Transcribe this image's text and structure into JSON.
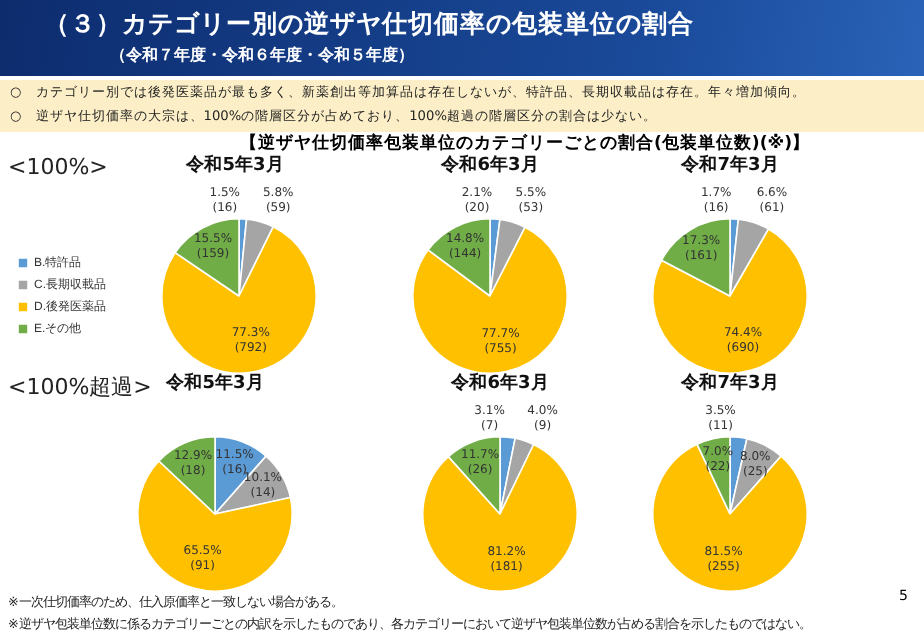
{
  "chart_data": [
    {
      "type": "other",
      "title": "（３）カテゴリー別の逆ザヤ仕切価率の包装単位の割合",
      "subtitle": "（令和７年度・令和６年度・令和５年度）",
      "annotations": [
        "○　カテゴリー別では後発医薬品が最も多く、新薬創出等加算品は存在しないが、特許品、長期収載品は存在。年々増加傾向。",
        "○　逆ザヤ仕切価率の大宗は、100%の階層区分が占めており、100%超過の階層区分の割合は少ない。",
        "【逆ザヤ仕切価率包装単位のカテゴリーごとの割合(包装単位数)(※)】",
        "※一次仕切価率のため、仕入原価率と一致しない場合がある。",
        "※逆ザヤ包装単位数に係るカテゴリーごとの内訳を示したものであり、各カテゴリーにおいて逆ザヤ包装単位数が占める割合を示したものではない。",
        "5"
      ]
    },
    {
      "type": "pie",
      "title": "令和5年3月",
      "ylabel": "<100%>",
      "legend": "left",
      "categories": [
        "B.特許品",
        "C.長期収載品",
        "D.後発医薬品",
        "E.その他"
      ],
      "colors": [
        "#5b9bd5",
        "#a5a5a5",
        "#ffc000",
        "#70ad47"
      ],
      "values": [
        16,
        59,
        792,
        159
      ],
      "value_labels": [
        "1.5%\n(16)",
        "5.8%\n(59)",
        "77.3%\n(792)",
        "15.5%\n(159)"
      ]
    },
    {
      "type": "pie",
      "title": "令和6年3月",
      "colors": [
        "#5b9bd5",
        "#a5a5a5",
        "#ffc000",
        "#70ad47"
      ],
      "values": [
        20,
        53,
        755,
        144
      ],
      "value_labels": [
        "2.1%\n(20)",
        "5.5%\n(53)",
        "77.7%\n(755)",
        "14.8%\n(144)"
      ]
    },
    {
      "type": "pie",
      "title": "令和7年3月",
      "colors": [
        "#5b9bd5",
        "#a5a5a5",
        "#ffc000",
        "#70ad47"
      ],
      "values": [
        16,
        61,
        690,
        161
      ],
      "value_labels": [
        "1.7%\n(16)",
        "6.6%\n(61)",
        "74.4%\n(690)",
        "17.3%\n(161)"
      ]
    },
    {
      "type": "pie",
      "title": "令和5年3月",
      "ylabel": "<100%超過>",
      "colors": [
        "#5b9bd5",
        "#a5a5a5",
        "#ffc000",
        "#70ad47"
      ],
      "values": [
        16,
        14,
        91,
        18
      ],
      "value_labels": [
        "11.5%\n(16)",
        "10.1%\n(14)",
        "65.5%\n(91)",
        "12.9%\n(18)"
      ]
    },
    {
      "type": "pie",
      "title": "令和6年3月",
      "colors": [
        "#5b9bd5",
        "#a5a5a5",
        "#ffc000",
        "#70ad47"
      ],
      "values": [
        7,
        9,
        181,
        26
      ],
      "value_labels": [
        "3.1%\n(7)",
        "4.0%\n(9)",
        "81.2%\n(181)",
        "11.7%\n(26)"
      ]
    },
    {
      "type": "pie",
      "title": "令和7年3月",
      "colors": [
        "#5b9bd5",
        "#a5a5a5",
        "#ffc000",
        "#70ad47"
      ],
      "values": [
        11,
        25,
        255,
        22
      ],
      "value_labels": [
        "3.5%\n(11)",
        "8.0%\n(25)",
        "81.5%\n(255)",
        "7.0%\n(22)"
      ]
    }
  ]
}
